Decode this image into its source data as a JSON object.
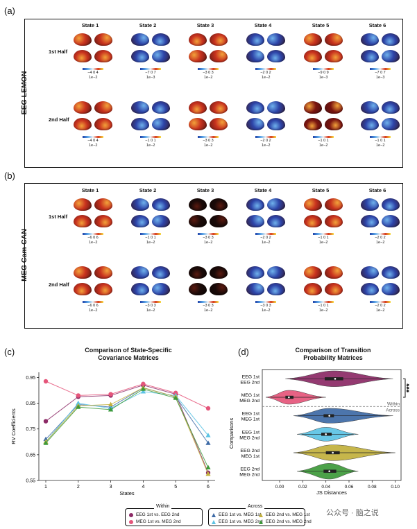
{
  "panels": {
    "a": {
      "letter": "(a)",
      "dataset": "EEG LEMON"
    },
    "b": {
      "letter": "(b)",
      "dataset": "MEG Cam-CAN"
    },
    "c": {
      "letter": "(c)"
    },
    "d": {
      "letter": "(d)"
    }
  },
  "states": [
    "State 1",
    "State 2",
    "State 3",
    "State 4",
    "State 5",
    "State 6"
  ],
  "halves": [
    "1st Half",
    "2nd Half"
  ],
  "colorbar_exponent": "1e−2",
  "colorbar_exponent_small": "1e−3",
  "eeg_colorbars": {
    "first": [
      "−4  0  4",
      "−7  0  7",
      "−3  0  3",
      "−2  0  2",
      "−9  0  9",
      "−7  0  7"
    ],
    "second": [
      "−4  0  4",
      "−1  0  1",
      "−3  0  3",
      "−2  0  2",
      "−1  0  1",
      "−1  0  1"
    ]
  },
  "meg_colorbars": {
    "first": [
      "−6  0  6",
      "−1 0 1",
      "−3  0  3",
      "−2  0  2",
      "−1  0  1",
      "−2  0  2"
    ],
    "second": [
      "−6  0  6",
      "−3 0 3",
      "−3  0  3",
      "−3  0  3",
      "−1  0  1",
      "−2  0  2"
    ]
  },
  "colors": {
    "warm": "#c8321e",
    "warm_dark": "#7a1410",
    "cool": "#2d44a8",
    "cool_light": "#5a8fe0",
    "dark": "#1a0a08",
    "eeg1_eeg2": "#8c2a66",
    "meg1_meg2": "#e5557a",
    "eeg1_meg1": "#3d6aa6",
    "eeg1_meg2": "#5cc3e4",
    "eeg2_meg1": "#c2b03c",
    "eeg2_meg2": "#3d9a3a"
  },
  "brain_palette": {
    "eeg_first": [
      "warm",
      "cool",
      "warm",
      "cool",
      "warm",
      "cool"
    ],
    "eeg_second": [
      "warm",
      "cool",
      "warm",
      "cool",
      "warm_dark",
      "cool"
    ],
    "meg_first": [
      "warm",
      "cool",
      "dark",
      "cool",
      "warm",
      "cool"
    ],
    "meg_second": [
      "warm",
      "cool",
      "dark",
      "cool",
      "warm",
      "cool"
    ]
  },
  "chart_data": [
    {
      "type": "line",
      "title": "Comparison of State-Specific",
      "title_line2": "Covariance Matrices",
      "xlabel": "States",
      "ylabel": "RV Coefficients",
      "x": [
        1,
        2,
        3,
        4,
        5,
        6
      ],
      "xticks": [
        "1",
        "2",
        "3",
        "4",
        "5",
        "6"
      ],
      "yticks": [
        "0.55",
        "0.65",
        "0.75",
        "0.85",
        "0.95"
      ],
      "ylim": [
        0.55,
        0.97
      ],
      "series": [
        {
          "name": "EEG 1st vs. EEG 2nd",
          "group": "Within",
          "marker": "circle",
          "color": "#8c2a66",
          "values": [
            0.78,
            0.875,
            0.88,
            0.92,
            0.885,
            0.58
          ]
        },
        {
          "name": "MEG 1st vs. MEG 2nd",
          "group": "Within",
          "marker": "circle",
          "color": "#e5557a",
          "values": [
            0.935,
            0.88,
            0.885,
            0.925,
            0.89,
            0.83
          ]
        },
        {
          "name": "EEG 1st vs. MEG 1st",
          "group": "Across",
          "marker": "triangle",
          "color": "#3d6aa6",
          "values": [
            0.71,
            0.845,
            0.835,
            0.91,
            0.875,
            0.695
          ]
        },
        {
          "name": "EEG 1st vs. MEG 2nd",
          "group": "Across",
          "marker": "triangle",
          "color": "#5cc3e4",
          "values": [
            0.7,
            0.85,
            0.83,
            0.895,
            0.88,
            0.725
          ]
        },
        {
          "name": "EEG 2nd vs. MEG 1st",
          "group": "Across",
          "marker": "triangle",
          "color": "#c2b03c",
          "values": [
            0.7,
            0.84,
            0.845,
            0.91,
            0.875,
            0.575
          ]
        },
        {
          "name": "EEG 2nd vs. MEG 2nd",
          "group": "Across",
          "marker": "triangle",
          "color": "#3d9a3a",
          "values": [
            0.695,
            0.835,
            0.825,
            0.905,
            0.87,
            0.6
          ]
        }
      ]
    },
    {
      "type": "violin",
      "title": "Comparison of Transition",
      "title_line2": "Probability Matrices",
      "xlabel": "JS Distances",
      "ylabel": "Comparisons",
      "xticks": [
        "0.00",
        "0.02",
        "0.04",
        "0.06",
        "0.08",
        "0.10"
      ],
      "xlim": [
        -0.015,
        0.105
      ],
      "categories": [
        {
          "line1": "EEG 1st",
          "line2": "EEG 2nd",
          "color": "#8c2a66",
          "median": 0.048,
          "q1": 0.039,
          "q3": 0.055,
          "min": 0.005,
          "max": 0.098,
          "peak": 0.047,
          "width": 0.85
        },
        {
          "line1": "MEG 1st",
          "line2": "MEG 2nd",
          "color": "#e5557a",
          "median": 0.008,
          "q1": 0.005,
          "q3": 0.012,
          "min": -0.012,
          "max": 0.04,
          "peak": 0.008,
          "width": 0.75
        },
        {
          "line1": "EEG 1st",
          "line2": "MEG 1st",
          "color": "#3d6aa6",
          "median": 0.043,
          "q1": 0.038,
          "q3": 0.047,
          "min": 0.012,
          "max": 0.098,
          "peak": 0.043,
          "width": 0.8
        },
        {
          "line1": "EEG 1st",
          "line2": "MEG 2nd",
          "color": "#5cc3e4",
          "median": 0.04,
          "q1": 0.036,
          "q3": 0.045,
          "min": 0.015,
          "max": 0.068,
          "peak": 0.04,
          "width": 0.75
        },
        {
          "line1": "EEG 2nd",
          "line2": "MEG 1st",
          "color": "#c2b03c",
          "median": 0.046,
          "q1": 0.04,
          "q3": 0.052,
          "min": 0.012,
          "max": 0.1,
          "peak": 0.046,
          "width": 0.85
        },
        {
          "line1": "EEG 2nd",
          "line2": "MEG 2nd",
          "color": "#3d9a3a",
          "median": 0.043,
          "q1": 0.038,
          "q3": 0.049,
          "min": 0.015,
          "max": 0.068,
          "peak": 0.043,
          "width": 0.85
        }
      ],
      "separator_labels": [
        "Within",
        "Across"
      ],
      "significance": "***"
    }
  ],
  "legend": {
    "within_title": "Within",
    "across_title": "Across",
    "within": [
      "EEG 1st vs. EEG 2nd",
      "MEG 1st vs. MEG 2nd"
    ],
    "across": [
      "EEG 1st vs. MEG 1st",
      "EEG 2nd vs. MEG 1st",
      "EEG 1st vs. MEG 2nd",
      "EEG 2nd vs. MEG 2nd"
    ]
  },
  "watermark": "公众号 · 脑之说"
}
